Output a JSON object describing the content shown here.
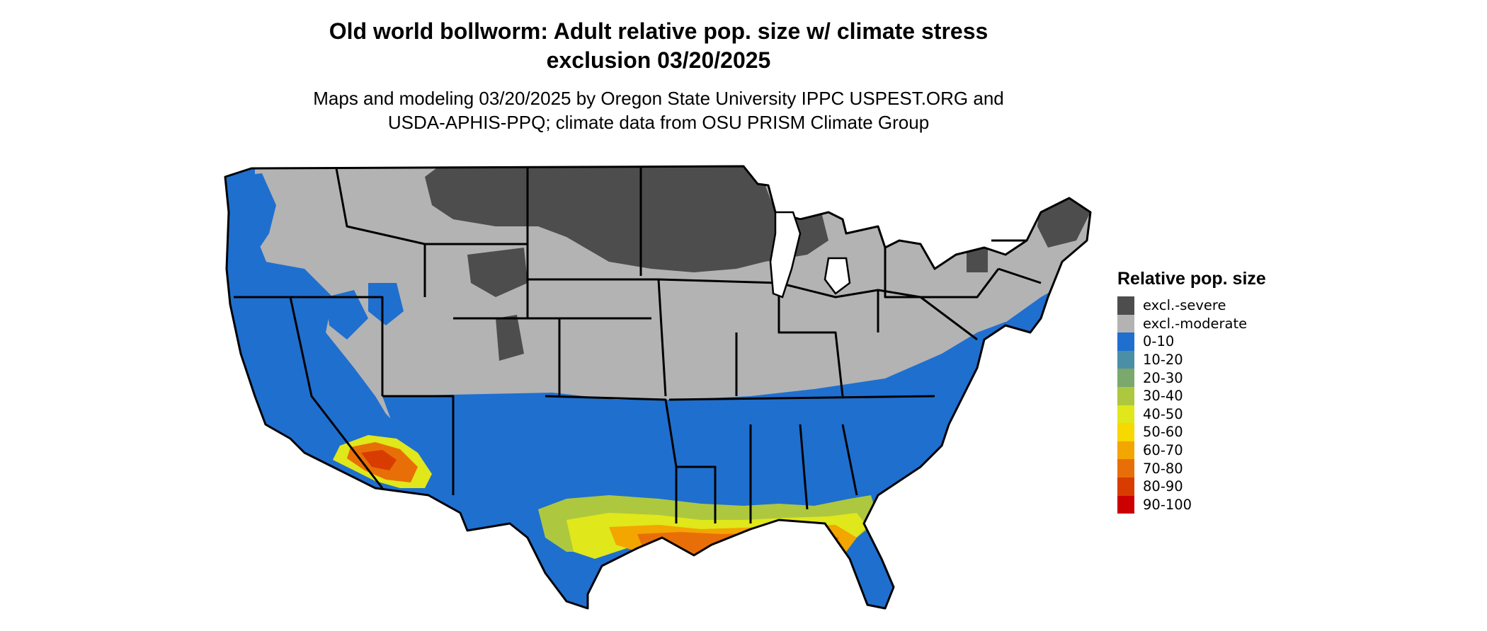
{
  "title": "Old world bollworm: Adult relative pop. size w/ climate stress exclusion 03/20/2025",
  "title_line1": "Old world bollworm: Adult relative pop. size w/ climate stress",
  "title_line2": "exclusion 03/20/2025",
  "subtitle_line1": "Maps and modeling 03/20/2025 by Oregon State University IPPC USPEST.ORG and",
  "subtitle_line2": "USDA-APHIS-PPQ; climate data from OSU PRISM Climate Group",
  "legend": {
    "title": "Relative pop. size",
    "items": [
      {
        "label": "excl.-severe",
        "color": "#4d4d4d"
      },
      {
        "label": "excl.-moderate",
        "color": "#b3b3b3"
      },
      {
        "label": "0-10",
        "color": "#1f6fcf"
      },
      {
        "label": "10-20",
        "color": "#4a8fa6"
      },
      {
        "label": "20-30",
        "color": "#7aa86d"
      },
      {
        "label": "30-40",
        "color": "#adc83f"
      },
      {
        "label": "40-50",
        "color": "#e0e71a"
      },
      {
        "label": "50-60",
        "color": "#f7d800"
      },
      {
        "label": "60-70",
        "color": "#f3a500"
      },
      {
        "label": "70-80",
        "color": "#e86f07"
      },
      {
        "label": "80-90",
        "color": "#d93c00"
      },
      {
        "label": "90-100",
        "color": "#cc0000"
      }
    ]
  }
}
